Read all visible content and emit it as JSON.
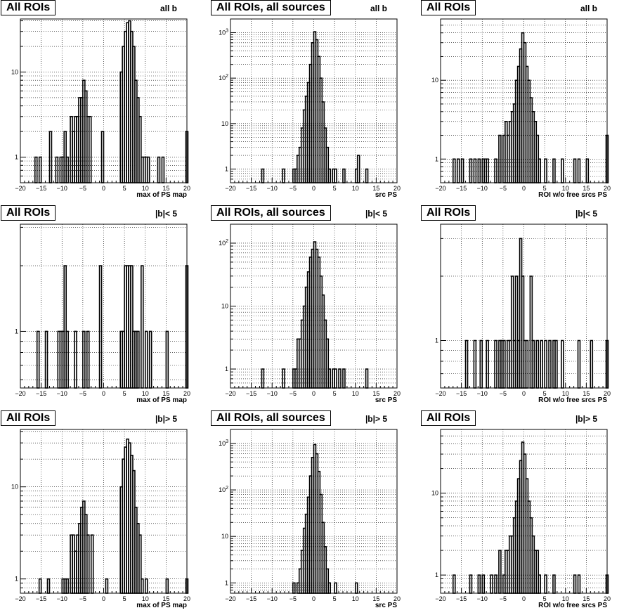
{
  "colors": {
    "line": "#000000",
    "grid": "#000000",
    "background": "#ffffff"
  },
  "chart_data": [
    {
      "type": "bar",
      "title": "All ROIs",
      "selection": "all b",
      "xlabel": "max of PS map",
      "xlim": [
        -20,
        20
      ],
      "ylim": [
        0.5,
        42
      ],
      "log_y": true,
      "grid": true,
      "xticks": [
        -20,
        -15,
        -10,
        -5,
        0,
        5,
        10,
        15,
        20
      ],
      "yticks": [
        1,
        10
      ],
      "bins": [
        [
          -16.5,
          1
        ],
        [
          -15.5,
          1
        ],
        [
          -13,
          2
        ],
        [
          -11.5,
          1
        ],
        [
          -10.5,
          1
        ],
        [
          -10,
          1
        ],
        [
          -9.5,
          2
        ],
        [
          -9,
          1
        ],
        [
          -8,
          3
        ],
        [
          -7.5,
          2
        ],
        [
          -7,
          3
        ],
        [
          -6.5,
          3
        ],
        [
          -6,
          5
        ],
        [
          -5.5,
          5
        ],
        [
          -5,
          8
        ],
        [
          -4.5,
          6
        ],
        [
          -4,
          3
        ],
        [
          -3.5,
          3
        ],
        [
          -0.5,
          2
        ],
        [
          4,
          10
        ],
        [
          4.5,
          20
        ],
        [
          5,
          30
        ],
        [
          5.5,
          38
        ],
        [
          6,
          40
        ],
        [
          6.5,
          30
        ],
        [
          7,
          20
        ],
        [
          7.5,
          8
        ],
        [
          8,
          5
        ],
        [
          8.5,
          3
        ],
        [
          9,
          1
        ],
        [
          9.5,
          1
        ],
        [
          10,
          1
        ],
        [
          10.5,
          1
        ],
        [
          13,
          1
        ],
        [
          14,
          1
        ],
        [
          19.75,
          2
        ]
      ]
    },
    {
      "type": "bar",
      "title": "All ROIs, all sources",
      "selection": "all b",
      "xlabel": "src PS",
      "xlim": [
        -20,
        20
      ],
      "ylim": [
        0.5,
        2000
      ],
      "log_y": true,
      "grid": true,
      "xticks": [
        -20,
        -15,
        -10,
        -5,
        0,
        5,
        10,
        15,
        20
      ],
      "yticks": [
        1,
        10,
        100,
        1000
      ],
      "ytick_labels": [
        "1",
        "10",
        "10^2",
        "10^3"
      ],
      "bins": [
        [
          -12.5,
          1
        ],
        [
          -7.5,
          1
        ],
        [
          -5,
          1
        ],
        [
          -4.5,
          1
        ],
        [
          -4,
          2
        ],
        [
          -3.5,
          3
        ],
        [
          -3,
          8
        ],
        [
          -2.5,
          20
        ],
        [
          -2,
          40
        ],
        [
          -1.5,
          80
        ],
        [
          -1,
          200
        ],
        [
          -0.5,
          600
        ],
        [
          0,
          1050
        ],
        [
          0.5,
          700
        ],
        [
          1,
          300
        ],
        [
          1.5,
          100
        ],
        [
          2,
          30
        ],
        [
          2.5,
          8
        ],
        [
          3,
          3
        ],
        [
          3.5,
          1
        ],
        [
          4.5,
          1
        ],
        [
          5,
          1
        ],
        [
          7,
          1
        ],
        [
          10,
          1
        ],
        [
          10.5,
          2
        ],
        [
          12.5,
          1
        ]
      ]
    },
    {
      "type": "bar",
      "title": "All ROIs",
      "selection": "all b",
      "xlabel": "ROI w/o free srcs PS",
      "xlim": [
        -20,
        20
      ],
      "ylim": [
        0.5,
        60
      ],
      "log_y": true,
      "grid": true,
      "xticks": [
        -20,
        -15,
        -10,
        -5,
        0,
        5,
        10,
        15,
        20
      ],
      "yticks": [
        1,
        10
      ],
      "bins": [
        [
          -17,
          1
        ],
        [
          -16,
          1
        ],
        [
          -15,
          1
        ],
        [
          -13,
          1
        ],
        [
          -12,
          1
        ],
        [
          -11,
          1
        ],
        [
          -10,
          1
        ],
        [
          -9.5,
          1
        ],
        [
          -9,
          1
        ],
        [
          -7,
          1
        ],
        [
          -6,
          2
        ],
        [
          -5,
          2
        ],
        [
          -4.5,
          3
        ],
        [
          -4,
          2
        ],
        [
          -3.5,
          3
        ],
        [
          -3,
          4
        ],
        [
          -2.5,
          5
        ],
        [
          -2,
          10
        ],
        [
          -1.5,
          15
        ],
        [
          -1,
          25
        ],
        [
          -0.5,
          40
        ],
        [
          0,
          30
        ],
        [
          0.5,
          15
        ],
        [
          1,
          10
        ],
        [
          1.5,
          6
        ],
        [
          2,
          4
        ],
        [
          2.5,
          3
        ],
        [
          3,
          2
        ],
        [
          3.5,
          1
        ],
        [
          5,
          1
        ],
        [
          7,
          1
        ],
        [
          9,
          1
        ],
        [
          12,
          1
        ],
        [
          13,
          1
        ],
        [
          15,
          1
        ],
        [
          19.75,
          2
        ]
      ]
    },
    {
      "type": "bar",
      "title": "All ROIs",
      "selection": "|b|< 5",
      "xlabel": "max of PS map",
      "xlim": [
        -20,
        20
      ],
      "ylim": [
        0.55,
        3.1
      ],
      "log_y": true,
      "grid": true,
      "xticks": [
        -20,
        -15,
        -10,
        -5,
        0,
        5,
        10,
        15,
        20
      ],
      "yticks": [
        1
      ],
      "bins": [
        [
          -16,
          1
        ],
        [
          -14,
          1
        ],
        [
          -11,
          1
        ],
        [
          -10.5,
          1
        ],
        [
          -10,
          1
        ],
        [
          -9.5,
          2
        ],
        [
          -9,
          1
        ],
        [
          -7,
          1
        ],
        [
          -5,
          1
        ],
        [
          -4,
          1
        ],
        [
          -1,
          2
        ],
        [
          4,
          1
        ],
        [
          4.5,
          1
        ],
        [
          5,
          2
        ],
        [
          5.5,
          2
        ],
        [
          6,
          2
        ],
        [
          6.5,
          2
        ],
        [
          7,
          1
        ],
        [
          7.5,
          1
        ],
        [
          8,
          1
        ],
        [
          9,
          2
        ],
        [
          10,
          1
        ],
        [
          11,
          1
        ],
        [
          15,
          1
        ],
        [
          19.75,
          2
        ]
      ]
    },
    {
      "type": "bar",
      "title": "All ROIs, all sources",
      "selection": "|b|< 5",
      "xlabel": "src PS",
      "xlim": [
        -20,
        20
      ],
      "ylim": [
        0.5,
        200
      ],
      "log_y": true,
      "grid": true,
      "xticks": [
        -20,
        -15,
        -10,
        -5,
        0,
        5,
        10,
        15,
        20
      ],
      "yticks": [
        1,
        10,
        100
      ],
      "ytick_labels": [
        "1",
        "10",
        "10^2"
      ],
      "bins": [
        [
          -12.5,
          1
        ],
        [
          -7.5,
          1
        ],
        [
          -5,
          1
        ],
        [
          -4.5,
          1
        ],
        [
          -4,
          3
        ],
        [
          -3.5,
          3
        ],
        [
          -3,
          6
        ],
        [
          -2.5,
          10
        ],
        [
          -2,
          20
        ],
        [
          -1.5,
          35
        ],
        [
          -1,
          60
        ],
        [
          -0.5,
          80
        ],
        [
          0,
          105
        ],
        [
          0.5,
          80
        ],
        [
          1,
          60
        ],
        [
          1.5,
          30
        ],
        [
          2,
          15
        ],
        [
          2.5,
          6
        ],
        [
          3,
          3
        ],
        [
          3.5,
          1
        ],
        [
          4.5,
          1
        ],
        [
          5,
          1
        ],
        [
          6,
          1
        ],
        [
          7,
          1
        ],
        [
          12.5,
          1
        ]
      ]
    },
    {
      "type": "bar",
      "title": "All ROIs",
      "selection": "|b|< 5",
      "xlabel": "ROI w/o free srcs PS",
      "xlim": [
        -20,
        20
      ],
      "ylim": [
        0.6,
        3.5
      ],
      "log_y": true,
      "grid": true,
      "xticks": [
        -20,
        -15,
        -10,
        -5,
        0,
        5,
        10,
        15,
        20
      ],
      "yticks": [
        1
      ],
      "bins": [
        [
          -14,
          1
        ],
        [
          -12,
          1
        ],
        [
          -10.5,
          1
        ],
        [
          -9,
          1
        ],
        [
          -7,
          1
        ],
        [
          -6,
          1
        ],
        [
          -5.5,
          1
        ],
        [
          -5,
          1
        ],
        [
          -4,
          1
        ],
        [
          -3.5,
          1
        ],
        [
          -3,
          2
        ],
        [
          -2.5,
          1
        ],
        [
          -2,
          2
        ],
        [
          -1.5,
          1
        ],
        [
          -1,
          3
        ],
        [
          -0.5,
          2
        ],
        [
          0,
          1
        ],
        [
          0.5,
          1
        ],
        [
          1.5,
          2
        ],
        [
          2,
          1
        ],
        [
          3,
          1
        ],
        [
          4,
          1
        ],
        [
          5,
          1
        ],
        [
          6,
          1
        ],
        [
          7,
          1
        ],
        [
          7.5,
          1
        ],
        [
          9,
          1
        ],
        [
          13,
          1
        ],
        [
          16,
          1
        ],
        [
          19.75,
          1
        ]
      ]
    },
    {
      "type": "bar",
      "title": "All ROIs",
      "selection": "|b|> 5",
      "xlabel": "max of PS map",
      "xlim": [
        -20,
        20
      ],
      "ylim": [
        0.7,
        42
      ],
      "log_y": true,
      "grid": true,
      "xticks": [
        -20,
        -15,
        -10,
        -5,
        0,
        5,
        10,
        15,
        20
      ],
      "yticks": [
        1,
        10
      ],
      "bins": [
        [
          -15.5,
          1
        ],
        [
          -13.5,
          1
        ],
        [
          -10,
          1
        ],
        [
          -9.5,
          1
        ],
        [
          -9,
          1
        ],
        [
          -8,
          3
        ],
        [
          -7.5,
          3
        ],
        [
          -7,
          2
        ],
        [
          -6.5,
          3
        ],
        [
          -6,
          4
        ],
        [
          -5.5,
          6
        ],
        [
          -5,
          7
        ],
        [
          -4.5,
          5
        ],
        [
          -4,
          3
        ],
        [
          -3,
          3
        ],
        [
          0.5,
          1
        ],
        [
          4,
          10
        ],
        [
          4.5,
          20
        ],
        [
          5,
          27
        ],
        [
          5.5,
          33
        ],
        [
          6,
          30
        ],
        [
          6.5,
          22
        ],
        [
          7,
          15
        ],
        [
          7.5,
          6
        ],
        [
          8,
          4
        ],
        [
          8.5,
          3
        ],
        [
          9,
          1
        ],
        [
          10,
          1
        ],
        [
          15,
          1
        ],
        [
          19.75,
          1
        ]
      ]
    },
    {
      "type": "bar",
      "title": "All ROIs, all sources",
      "selection": "|b|> 5",
      "xlabel": "src PS",
      "xlim": [
        -20,
        20
      ],
      "ylim": [
        0.6,
        2000
      ],
      "log_y": true,
      "grid": true,
      "xticks": [
        -20,
        -15,
        -10,
        -5,
        0,
        5,
        10,
        15,
        20
      ],
      "yticks": [
        1,
        10,
        100,
        1000
      ],
      "ytick_labels": [
        "1",
        "10",
        "10^2",
        "10^3"
      ],
      "bins": [
        [
          -5,
          1
        ],
        [
          -4,
          1
        ],
        [
          -3.5,
          2
        ],
        [
          -3,
          5
        ],
        [
          -2.5,
          15
        ],
        [
          -2,
          30
        ],
        [
          -1.5,
          70
        ],
        [
          -1,
          200
        ],
        [
          -0.5,
          500
        ],
        [
          0,
          950
        ],
        [
          0.5,
          600
        ],
        [
          1,
          250
        ],
        [
          1.5,
          80
        ],
        [
          2,
          20
        ],
        [
          2.5,
          6
        ],
        [
          3,
          2
        ],
        [
          3.5,
          1
        ],
        [
          5,
          1
        ],
        [
          10,
          1
        ]
      ]
    },
    {
      "type": "bar",
      "title": "All ROIs",
      "selection": "|b|> 5",
      "xlabel": "ROI w/o free srcs PS",
      "xlim": [
        -20,
        20
      ],
      "ylim": [
        0.6,
        60
      ],
      "log_y": true,
      "grid": true,
      "xticks": [
        -20,
        -15,
        -10,
        -5,
        0,
        5,
        10,
        15,
        20
      ],
      "yticks": [
        1,
        10
      ],
      "bins": [
        [
          -17,
          1
        ],
        [
          -13,
          1
        ],
        [
          -11,
          1
        ],
        [
          -10,
          1
        ],
        [
          -8,
          1
        ],
        [
          -7,
          1
        ],
        [
          -6,
          2
        ],
        [
          -5,
          1
        ],
        [
          -4.5,
          2
        ],
        [
          -4,
          2
        ],
        [
          -3.5,
          3
        ],
        [
          -3,
          3
        ],
        [
          -2.5,
          5
        ],
        [
          -2,
          8
        ],
        [
          -1.5,
          15
        ],
        [
          -1,
          25
        ],
        [
          -0.5,
          42
        ],
        [
          0,
          30
        ],
        [
          0.5,
          15
        ],
        [
          1,
          8
        ],
        [
          1.5,
          5
        ],
        [
          2,
          3
        ],
        [
          2.5,
          2
        ],
        [
          3,
          2
        ],
        [
          3.5,
          1
        ],
        [
          5,
          1
        ],
        [
          7,
          1
        ],
        [
          12,
          1
        ],
        [
          13,
          1
        ],
        [
          19.75,
          1
        ]
      ]
    }
  ]
}
